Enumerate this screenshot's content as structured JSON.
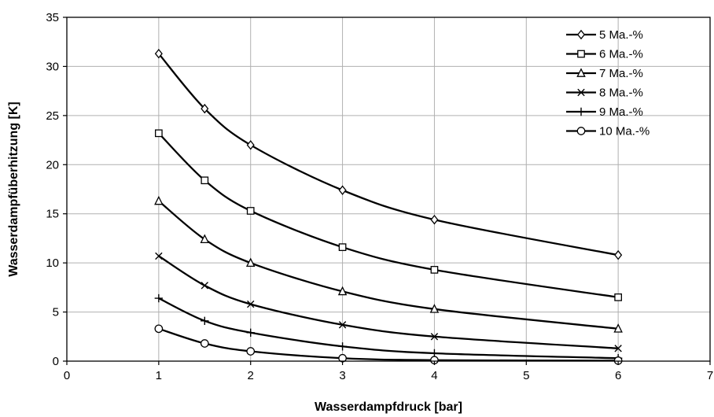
{
  "chart_data": {
    "type": "line",
    "xlabel": "Wasserdampfdruck [bar]",
    "ylabel": "Wasserdampfüberhitzung [K]",
    "xlim": [
      0,
      7
    ],
    "ylim": [
      0,
      35
    ],
    "xticks": [
      "0",
      "1",
      "2",
      "3",
      "4",
      "5",
      "6",
      "7"
    ],
    "yticks": [
      "0",
      "5",
      "10",
      "15",
      "20",
      "25",
      "30",
      "35"
    ],
    "grid": true,
    "legend_position": "top-right",
    "series": [
      {
        "name": "5 Ma.-%",
        "marker": "diamond",
        "x": [
          1,
          1.5,
          2,
          3,
          4,
          6
        ],
        "y": [
          31.3,
          25.7,
          22.0,
          17.4,
          14.4,
          10.8
        ]
      },
      {
        "name": "6 Ma.-%",
        "marker": "square",
        "x": [
          1,
          1.5,
          2,
          3,
          4,
          6
        ],
        "y": [
          23.2,
          18.4,
          15.3,
          11.6,
          9.3,
          6.5
        ]
      },
      {
        "name": "7 Ma.-%",
        "marker": "triangle",
        "x": [
          1,
          1.5,
          2,
          3,
          4,
          6
        ],
        "y": [
          16.3,
          12.4,
          10.0,
          7.1,
          5.3,
          3.3
        ]
      },
      {
        "name": "8 Ma.-%",
        "marker": "x",
        "x": [
          1,
          1.5,
          2,
          3,
          4,
          6
        ],
        "y": [
          10.7,
          7.7,
          5.8,
          3.7,
          2.5,
          1.3
        ]
      },
      {
        "name": "9 Ma.-%",
        "marker": "plus",
        "x": [
          1,
          1.5,
          2,
          3,
          4,
          6
        ],
        "y": [
          6.4,
          4.1,
          2.9,
          1.5,
          0.8,
          0.3
        ]
      },
      {
        "name": "10 Ma.-%",
        "marker": "circle",
        "x": [
          1,
          1.5,
          2,
          3,
          4,
          6
        ],
        "y": [
          3.3,
          1.8,
          1.0,
          0.3,
          0.1,
          0.05
        ]
      }
    ]
  }
}
